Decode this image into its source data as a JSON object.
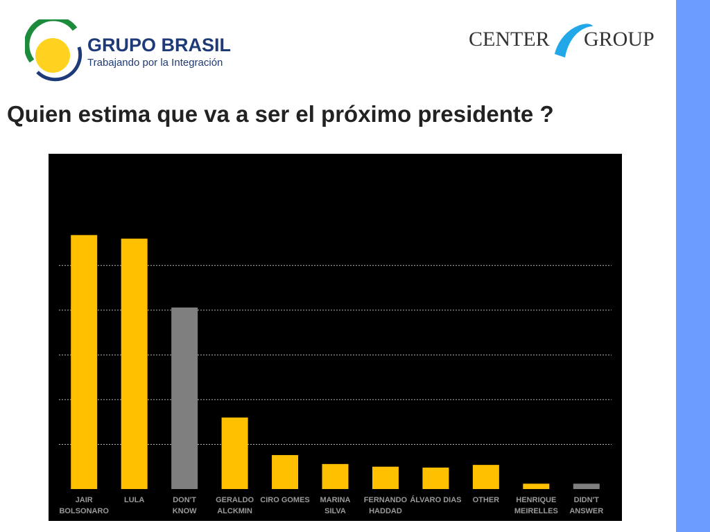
{
  "logos": {
    "left_title": "GRUPO BRASIL",
    "left_subtitle": "Trabajando por la Integración",
    "right_left": "CENTER",
    "right_right": "GROUP"
  },
  "chart_data": {
    "type": "bar",
    "title": "Quien estima que va a ser el próximo presidente ?",
    "categories": [
      "JAIR\nBOLSONARO",
      "LULA",
      "DON'T\nKNOW",
      "GERALDO\nALCKMIN",
      "CIRO GOMES",
      "MARINA\nSILVA",
      "FERNANDO\nHADDAD",
      "ÁLVARO DIAS",
      "OTHER",
      "HENRIQUE\nMEIRELLES",
      "DIDN'T\nANSWER"
    ],
    "values": [
      28.4,
      28,
      20.3,
      8,
      3.8,
      2.8,
      2.5,
      2.4,
      2.7,
      0.6,
      0.6
    ],
    "colors": [
      "#ffc000",
      "#ffc000",
      "#7f7f7f",
      "#ffc000",
      "#ffc000",
      "#ffc000",
      "#ffc000",
      "#ffc000",
      "#ffc000",
      "#ffc000",
      "#7f7f7f"
    ],
    "ylim": [
      0,
      37.8
    ],
    "yticks": [
      5,
      10,
      15,
      20,
      25
    ],
    "grid": true
  }
}
